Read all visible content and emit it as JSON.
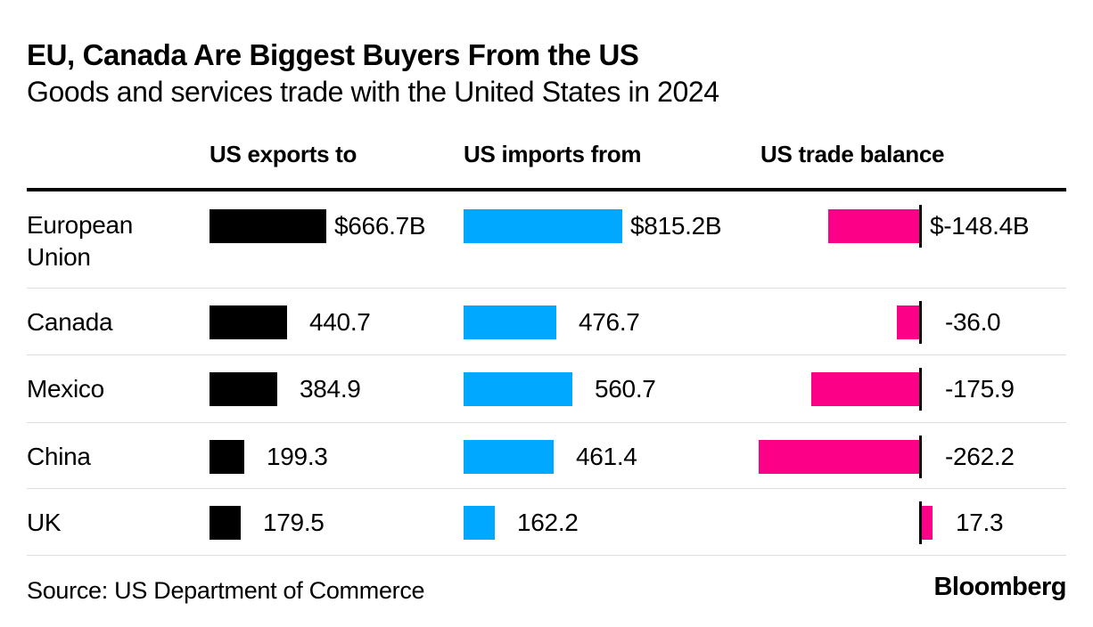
{
  "title": "EU, Canada Are Biggest Buyers From the US",
  "subtitle": "Goods and services trade with the United States in 2024",
  "source": "Source: US Department of Commerce",
  "brand": "Bloomberg",
  "colors": {
    "exports_bar": "#000000",
    "imports_bar": "#00a8ff",
    "balance_bar": "#fc0087",
    "rule": "#000000",
    "separator": "#dddddd",
    "text": "#000000"
  },
  "columns": [
    {
      "key": "exports",
      "label": "US exports to"
    },
    {
      "key": "imports",
      "label": "US imports from"
    },
    {
      "key": "balance",
      "label": "US trade balance"
    }
  ],
  "chart_data": {
    "type": "bar",
    "orientation": "horizontal",
    "units": "billions of US dollars",
    "title": "EU, Canada Are Biggest Buyers From the US",
    "subtitle": "Goods and services trade with the United States in 2024",
    "categories": [
      "European Union",
      "Canada",
      "Mexico",
      "China",
      "UK"
    ],
    "series": [
      {
        "name": "US exports to",
        "color": "#000000",
        "values": [
          666.7,
          440.7,
          384.9,
          199.3,
          179.5
        ],
        "labels": [
          "$666.7B",
          "440.7",
          "384.9",
          "199.3",
          "179.5"
        ]
      },
      {
        "name": "US imports from",
        "color": "#00a8ff",
        "values": [
          815.2,
          476.7,
          560.7,
          461.4,
          162.2
        ],
        "labels": [
          "$815.2B",
          "476.7",
          "560.7",
          "461.4",
          "162.2"
        ]
      },
      {
        "name": "US trade balance",
        "color": "#fc0087",
        "values": [
          -148.4,
          -36.0,
          -175.9,
          -262.2,
          17.3
        ],
        "labels": [
          "$-148.4B",
          "-36.0",
          "-175.9",
          "-262.2",
          "17.3"
        ]
      }
    ],
    "layout_hints": {
      "balance_zero_line": true,
      "independent_column_scales": true,
      "value_labels_right_of_bars": true,
      "legend_position": "column-headers"
    }
  }
}
